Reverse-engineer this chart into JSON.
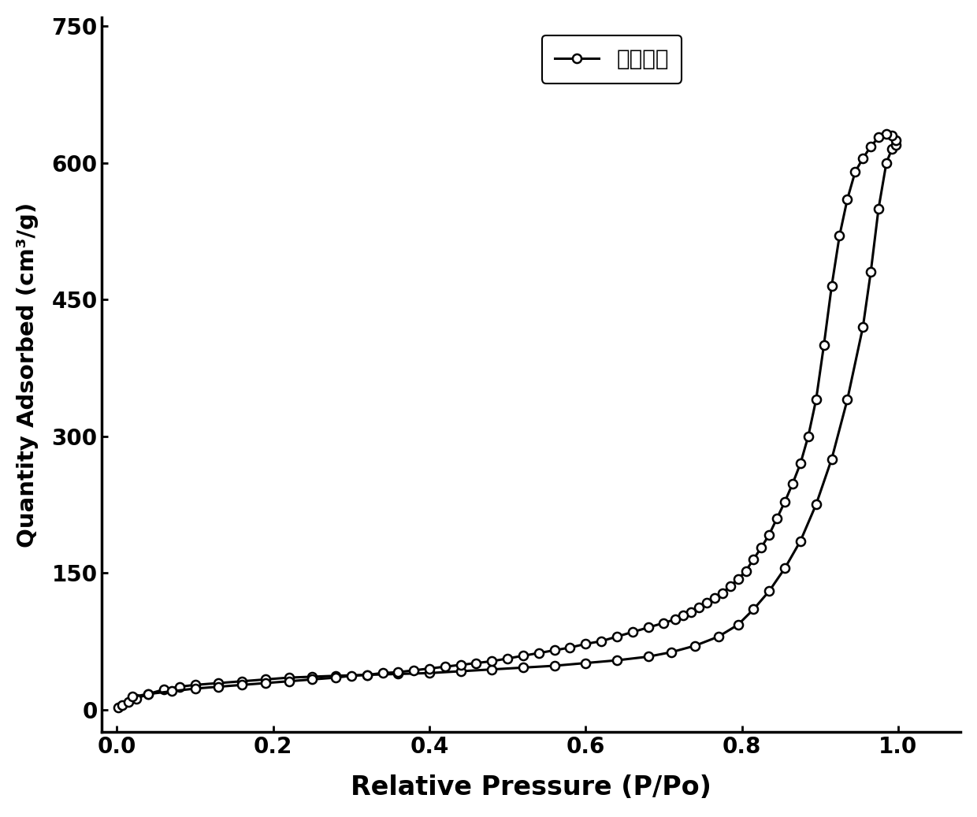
{
  "title": "",
  "xlabel": "Relative Pressure (P/Po)",
  "ylabel": "Quantity Adsorbed (cm³/g)",
  "legend_label": "最佳条件",
  "xlim": [
    -0.02,
    1.08
  ],
  "ylim": [
    -25,
    760
  ],
  "yticks": [
    0,
    150,
    300,
    450,
    600,
    750
  ],
  "xticks": [
    0.0,
    0.2,
    0.4,
    0.6,
    0.8,
    1.0
  ],
  "adsorption_x": [
    0.002,
    0.007,
    0.015,
    0.025,
    0.04,
    0.06,
    0.08,
    0.1,
    0.13,
    0.16,
    0.19,
    0.22,
    0.25,
    0.28,
    0.32,
    0.36,
    0.4,
    0.44,
    0.48,
    0.52,
    0.56,
    0.6,
    0.64,
    0.68,
    0.71,
    0.74,
    0.77,
    0.795,
    0.815,
    0.835,
    0.855,
    0.875,
    0.895,
    0.915,
    0.935,
    0.955,
    0.965,
    0.975,
    0.985,
    0.992,
    0.997
  ],
  "adsorption_y": [
    2,
    5,
    8,
    12,
    17,
    22,
    25,
    27,
    29,
    31,
    33,
    35,
    36,
    37,
    38,
    39,
    40,
    42,
    44,
    46,
    48,
    51,
    54,
    58,
    63,
    70,
    80,
    93,
    110,
    130,
    155,
    185,
    225,
    275,
    340,
    420,
    480,
    550,
    600,
    615,
    620
  ],
  "desorption_x": [
    0.997,
    0.992,
    0.985,
    0.975,
    0.965,
    0.955,
    0.945,
    0.935,
    0.925,
    0.915,
    0.905,
    0.895,
    0.885,
    0.875,
    0.865,
    0.855,
    0.845,
    0.835,
    0.825,
    0.815,
    0.805,
    0.795,
    0.785,
    0.775,
    0.765,
    0.755,
    0.745,
    0.735,
    0.725,
    0.715,
    0.7,
    0.68,
    0.66,
    0.64,
    0.62,
    0.6,
    0.58,
    0.56,
    0.54,
    0.52,
    0.5,
    0.48,
    0.46,
    0.44,
    0.42,
    0.4,
    0.38,
    0.36,
    0.34,
    0.32,
    0.3,
    0.28,
    0.25,
    0.22,
    0.19,
    0.16,
    0.13,
    0.1,
    0.07,
    0.04,
    0.02
  ],
  "desorption_y": [
    625,
    630,
    632,
    628,
    618,
    605,
    590,
    560,
    520,
    465,
    400,
    340,
    300,
    270,
    248,
    228,
    210,
    192,
    178,
    165,
    152,
    143,
    135,
    128,
    122,
    117,
    112,
    107,
    103,
    99,
    95,
    90,
    85,
    80,
    75,
    72,
    68,
    65,
    62,
    59,
    56,
    53,
    51,
    49,
    47,
    45,
    43,
    41,
    40,
    38,
    37,
    35,
    33,
    31,
    29,
    27,
    25,
    23,
    20,
    17,
    14
  ],
  "line_color": "#000000",
  "marker": "o",
  "marker_size": 8,
  "marker_facecolor": "white",
  "marker_edgecolor": "#000000",
  "marker_edgewidth": 1.8,
  "linewidth": 2.2,
  "background_color": "#ffffff",
  "xlabel_fontsize": 24,
  "ylabel_fontsize": 21,
  "tick_fontsize": 20,
  "legend_fontsize": 20,
  "axis_linewidth": 2.5
}
